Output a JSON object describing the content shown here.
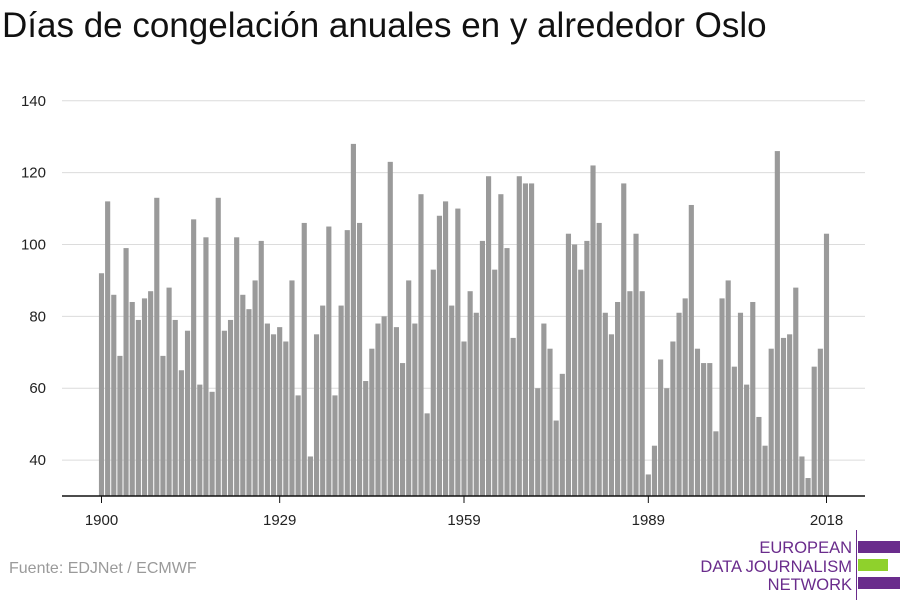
{
  "title": "Días de congelación anuales en y alrededor Oslo",
  "source": "Fuente: EDJNet / ECMWF",
  "logo": {
    "lines": [
      "EUROPEAN",
      "DATA JOURNALISM",
      "NETWORK"
    ],
    "colors": [
      "#6a2c8c",
      "#8fd12c",
      "#6a2c8c"
    ]
  },
  "colors": {
    "bar": "#9a9a9a",
    "grid": "#dcdcdc",
    "axis": "#111111",
    "brand": "#6a2c8c",
    "accent": "#8fd12c"
  },
  "chart_data": {
    "type": "bar",
    "title": "Días de congelación anuales en y alrededor Oslo",
    "xlabel": "",
    "ylabel": "",
    "ylim": [
      30,
      143
    ],
    "yticks": [
      40,
      60,
      80,
      100,
      120,
      140
    ],
    "xticks": [
      1900,
      1929,
      1959,
      1989,
      2018
    ],
    "grid": true,
    "x": [
      1900,
      1901,
      1902,
      1903,
      1904,
      1905,
      1906,
      1907,
      1908,
      1909,
      1910,
      1911,
      1912,
      1913,
      1914,
      1915,
      1916,
      1917,
      1918,
      1919,
      1920,
      1921,
      1922,
      1923,
      1924,
      1925,
      1926,
      1927,
      1928,
      1929,
      1930,
      1931,
      1932,
      1933,
      1934,
      1935,
      1936,
      1937,
      1938,
      1939,
      1940,
      1941,
      1942,
      1943,
      1944,
      1945,
      1946,
      1947,
      1948,
      1949,
      1950,
      1951,
      1952,
      1953,
      1954,
      1955,
      1956,
      1957,
      1958,
      1959,
      1960,
      1961,
      1962,
      1963,
      1964,
      1965,
      1966,
      1967,
      1968,
      1969,
      1970,
      1971,
      1972,
      1973,
      1974,
      1975,
      1976,
      1977,
      1978,
      1979,
      1980,
      1981,
      1982,
      1983,
      1984,
      1985,
      1986,
      1987,
      1988,
      1989,
      1990,
      1991,
      1992,
      1993,
      1994,
      1995,
      1996,
      1997,
      1998,
      1999,
      2000,
      2001,
      2002,
      2003,
      2004,
      2005,
      2006,
      2007,
      2008,
      2009,
      2010,
      2011,
      2012,
      2013,
      2014,
      2015,
      2016,
      2017,
      2018
    ],
    "values": [
      92,
      112,
      86,
      69,
      99,
      84,
      79,
      85,
      87,
      113,
      69,
      88,
      79,
      65,
      76,
      107,
      61,
      102,
      59,
      113,
      76,
      79,
      102,
      86,
      82,
      90,
      101,
      78,
      75,
      77,
      73,
      90,
      58,
      106,
      41,
      75,
      83,
      105,
      58,
      83,
      104,
      128,
      106,
      62,
      71,
      78,
      80,
      123,
      77,
      67,
      90,
      78,
      114,
      53,
      93,
      108,
      112,
      83,
      110,
      73,
      87,
      81,
      101,
      119,
      93,
      114,
      99,
      74,
      119,
      117,
      117,
      60,
      78,
      71,
      51,
      64,
      103,
      100,
      93,
      101,
      122,
      106,
      81,
      75,
      84,
      117,
      87,
      103,
      87,
      36,
      44,
      68,
      60,
      73,
      81,
      85,
      111,
      71,
      67,
      67,
      48,
      85,
      90,
      66,
      81,
      61,
      84,
      52,
      44,
      71,
      126,
      74,
      75,
      88,
      41,
      35,
      66,
      71,
      103
    ]
  }
}
